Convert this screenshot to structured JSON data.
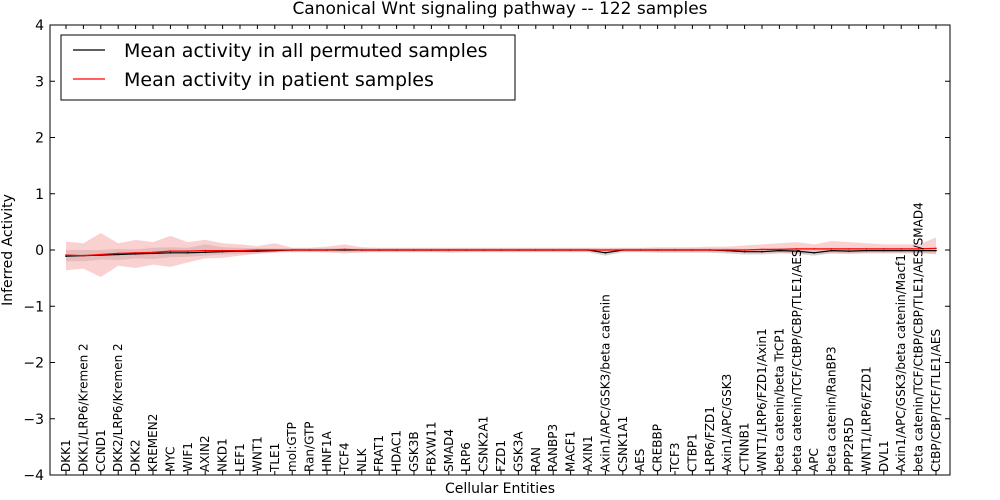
{
  "chart_data": {
    "type": "line",
    "title": "Canonical Wnt signaling pathway -- 122 samples",
    "xlabel": "Cellular Entities",
    "ylabel": "Inferred Activity",
    "ylim": [
      -4,
      4
    ],
    "yticks": [
      -4,
      -3,
      -2,
      -1,
      0,
      1,
      2,
      3,
      4
    ],
    "ytick_labels": [
      "−4",
      "−3",
      "−2",
      "−1",
      "0",
      "1",
      "2",
      "3",
      "4"
    ],
    "legend_position": "upper-left",
    "categories": [
      "DKK1",
      "DKK1/LRP6/Kremen 2",
      "CCND1",
      "DKK2/LRP6/Kremen 2",
      "DKK2",
      "KREMEN2",
      "MYC",
      "WIF1",
      "AXIN2",
      "NKD1",
      "LEF1",
      "WNT1",
      "TLE1",
      "mol:GTP",
      "Ran/GTP",
      "HNF1A",
      "TCF4",
      "NLK",
      "FRAT1",
      "HDAC1",
      "GSK3B",
      "FBXW11",
      "SMAD4",
      "LRP6",
      "CSNK2A1",
      "FZD1",
      "GSK3A",
      "RAN",
      "RANBP3",
      "MACF1",
      "AXIN1",
      "Axin1/APC/GSK3/beta catenin",
      "CSNK1A1",
      "AES",
      "CREBBP",
      "TCF3",
      "CTBP1",
      "LRP6/FZD1",
      "Axin1/APC/GSK3",
      "CTNNB1",
      "WNT1/LRP6/FZD1/Axin1",
      "beta catenin/beta TrCP1",
      "beta catenin/TCF/CtBP/CBP/TLE1/AES",
      "APC",
      "beta catenin/RanBP3",
      "PPP2R5D",
      "WNT1/LRP6/FZD1",
      "DVL1",
      "Axin1/APC/GSK3/beta catenin/Macf1",
      "beta catenin/TCF/CtBP/CBP/TLE1/AES/SMAD4",
      "CtBP/CBP/TCF/TLE1/AES"
    ],
    "series": [
      {
        "name": "Mean activity in all permuted samples",
        "color": "#000000",
        "band_color": "#b0b0b0",
        "values": [
          -0.11,
          -0.1,
          -0.09,
          -0.08,
          -0.07,
          -0.06,
          -0.05,
          -0.05,
          -0.04,
          -0.03,
          -0.02,
          -0.02,
          -0.01,
          0.0,
          0.0,
          0.0,
          0.0,
          0.0,
          0.0,
          0.0,
          0.0,
          0.0,
          0.0,
          0.0,
          0.0,
          0.0,
          0.0,
          0.0,
          0.0,
          0.0,
          0.0,
          -0.05,
          0.0,
          0.0,
          0.0,
          0.0,
          0.0,
          0.0,
          -0.01,
          -0.03,
          -0.03,
          -0.01,
          -0.02,
          -0.05,
          -0.01,
          -0.02,
          -0.01,
          -0.01,
          -0.01,
          -0.01,
          -0.01
        ],
        "lower": [
          -0.2,
          -0.2,
          -0.17,
          -0.18,
          -0.15,
          -0.16,
          -0.13,
          -0.12,
          -0.1,
          -0.08,
          -0.07,
          -0.06,
          -0.04,
          -0.04,
          -0.04,
          -0.04,
          -0.04,
          -0.04,
          -0.04,
          -0.04,
          -0.04,
          -0.04,
          -0.05,
          -0.04,
          -0.04,
          -0.04,
          -0.04,
          -0.04,
          -0.04,
          -0.04,
          -0.04,
          -0.1,
          -0.04,
          -0.04,
          -0.05,
          -0.05,
          -0.05,
          -0.05,
          -0.06,
          -0.08,
          -0.08,
          -0.06,
          -0.07,
          -0.1,
          -0.06,
          -0.07,
          -0.06,
          -0.06,
          -0.06,
          -0.06,
          -0.06
        ],
        "upper": [
          0.0,
          0.0,
          0.0,
          0.02,
          0.01,
          0.04,
          0.05,
          0.04,
          0.1,
          0.05,
          0.04,
          0.03,
          0.03,
          0.03,
          0.03,
          0.03,
          0.03,
          0.03,
          0.03,
          0.03,
          0.03,
          0.03,
          0.03,
          0.03,
          0.03,
          0.03,
          0.03,
          0.03,
          0.03,
          0.03,
          0.03,
          0.02,
          0.03,
          0.03,
          0.03,
          0.03,
          0.03,
          0.03,
          0.03,
          0.02,
          0.02,
          0.03,
          0.03,
          0.01,
          0.03,
          0.03,
          0.03,
          0.03,
          0.03,
          0.03,
          0.03
        ]
      },
      {
        "name": "Mean activity in patient samples",
        "color": "#ff0000",
        "band_color": "#f4a3a3",
        "values": [
          -0.09,
          -0.1,
          -0.08,
          -0.06,
          -0.05,
          -0.04,
          -0.02,
          -0.02,
          -0.01,
          -0.01,
          -0.01,
          0.0,
          0.0,
          0.0,
          0.0,
          0.0,
          0.01,
          0.0,
          0.0,
          0.0,
          0.0,
          0.0,
          0.0,
          0.0,
          0.0,
          0.0,
          0.0,
          0.0,
          0.0,
          0.0,
          0.0,
          0.0,
          0.0,
          0.0,
          0.0,
          0.0,
          0.0,
          0.0,
          0.0,
          0.0,
          0.01,
          0.01,
          0.02,
          0.02,
          0.02,
          0.02,
          0.02,
          0.02,
          0.02,
          0.02,
          0.03
        ],
        "lower": [
          -0.36,
          -0.33,
          -0.48,
          -0.28,
          -0.32,
          -0.26,
          -0.3,
          -0.22,
          -0.15,
          -0.14,
          -0.1,
          -0.07,
          -0.05,
          -0.03,
          -0.03,
          -0.04,
          -0.06,
          -0.04,
          -0.03,
          -0.03,
          -0.03,
          -0.03,
          -0.03,
          -0.03,
          -0.03,
          -0.03,
          -0.03,
          -0.03,
          -0.03,
          -0.03,
          -0.03,
          -0.03,
          -0.03,
          -0.03,
          -0.03,
          -0.03,
          -0.03,
          -0.03,
          -0.04,
          -0.05,
          -0.05,
          -0.05,
          -0.06,
          -0.07,
          -0.06,
          -0.06,
          -0.05,
          -0.05,
          -0.05,
          -0.05,
          -0.08
        ],
        "upper": [
          0.15,
          0.12,
          0.3,
          0.12,
          0.18,
          0.14,
          0.25,
          0.14,
          0.18,
          0.12,
          0.1,
          0.07,
          0.12,
          0.04,
          0.04,
          0.06,
          0.1,
          0.05,
          0.04,
          0.04,
          0.04,
          0.04,
          0.04,
          0.04,
          0.04,
          0.04,
          0.04,
          0.04,
          0.04,
          0.04,
          0.04,
          0.04,
          0.04,
          0.04,
          0.05,
          0.05,
          0.05,
          0.06,
          0.06,
          0.08,
          0.1,
          0.12,
          0.14,
          0.1,
          0.16,
          0.14,
          0.12,
          0.1,
          0.1,
          0.1,
          0.22
        ]
      }
    ]
  }
}
